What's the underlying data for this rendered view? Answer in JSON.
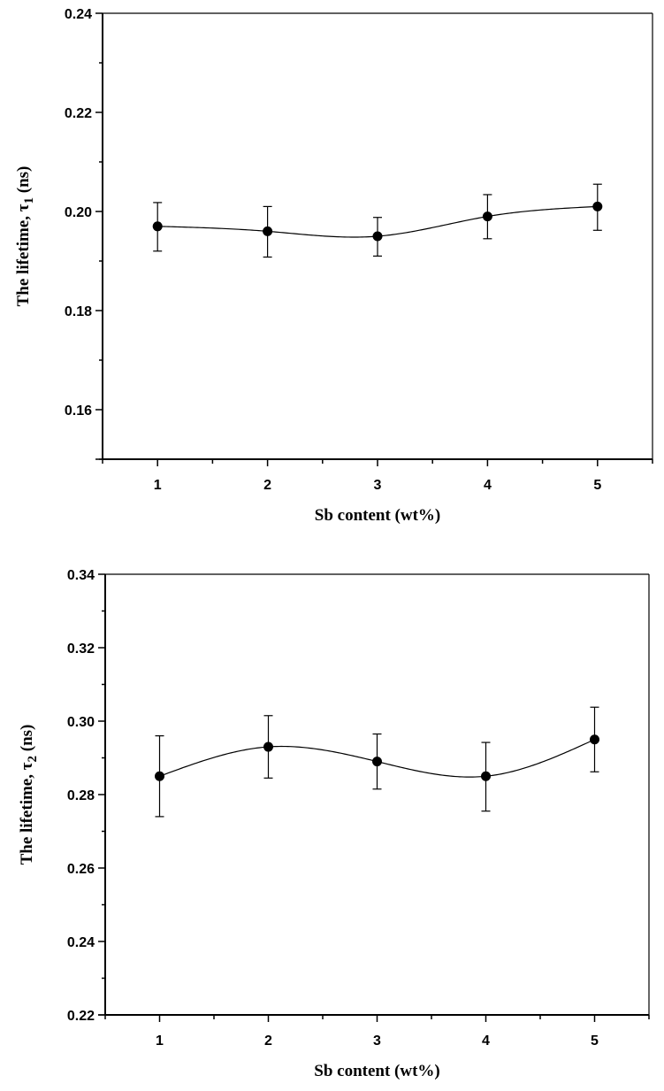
{
  "chart_data": [
    {
      "type": "line",
      "title": "",
      "xlabel": "Sb content (wt%)",
      "ylabel": "The lifetime, τ",
      "ylabel_sub": "1",
      "ylabel_suffix": " (ns)",
      "xlim": [
        0.5,
        5.5
      ],
      "ylim": [
        0.15,
        0.24
      ],
      "xticks": [
        1,
        2,
        3,
        4,
        5
      ],
      "xtick_labels": [
        "1",
        "2",
        "3",
        "4",
        "5"
      ],
      "yticks": [
        0.16,
        0.18,
        0.2,
        0.22,
        0.24
      ],
      "ytick_labels": [
        "0.16",
        "0.18",
        "0.20",
        "0.22",
        "0.24"
      ],
      "grid": false,
      "legend": "none",
      "series": [
        {
          "name": "tau1",
          "x": [
            1,
            2,
            3,
            4,
            5
          ],
          "y": [
            0.197,
            0.196,
            0.195,
            0.199,
            0.201
          ],
          "err_low": [
            0.192,
            0.1908,
            0.191,
            0.1945,
            0.1962
          ],
          "err_high": [
            0.2018,
            0.201,
            0.1988,
            0.2034,
            0.2055
          ],
          "marker": "filled-circle",
          "line": "smooth-spline"
        }
      ]
    },
    {
      "type": "line",
      "title": "",
      "xlabel": "Sb content (wt%)",
      "ylabel": "The lifetime, τ",
      "ylabel_sub": "2",
      "ylabel_suffix": " (ns)",
      "xlim": [
        0.5,
        5.5
      ],
      "ylim": [
        0.22,
        0.34
      ],
      "xticks": [
        1,
        2,
        3,
        4,
        5
      ],
      "xtick_labels": [
        "1",
        "2",
        "3",
        "4",
        "5"
      ],
      "yticks": [
        0.22,
        0.24,
        0.26,
        0.28,
        0.3,
        0.32,
        0.34
      ],
      "ytick_labels": [
        "0.22",
        "0.24",
        "0.26",
        "0.28",
        "0.30",
        "0.32",
        "0.34"
      ],
      "grid": false,
      "legend": "none",
      "series": [
        {
          "name": "tau2",
          "x": [
            1,
            2,
            3,
            4,
            5
          ],
          "y": [
            0.285,
            0.293,
            0.289,
            0.285,
            0.295
          ],
          "err_low": [
            0.274,
            0.2845,
            0.2815,
            0.2755,
            0.2862
          ],
          "err_high": [
            0.296,
            0.3015,
            0.2965,
            0.2942,
            0.3038
          ],
          "marker": "filled-circle",
          "line": "smooth-spline"
        }
      ]
    }
  ]
}
